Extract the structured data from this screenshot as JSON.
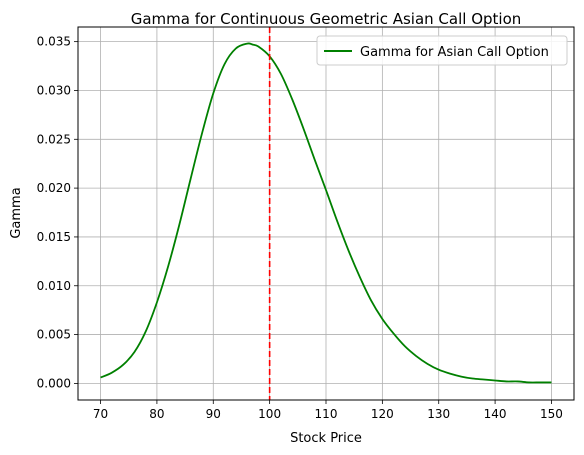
{
  "chart_data": {
    "type": "line",
    "title": "Gamma for Continuous Geometric Asian Call Option",
    "xlabel": "Stock Price",
    "ylabel": "Gamma",
    "xlim": [
      66,
      154
    ],
    "ylim": [
      -0.0017,
      0.0365
    ],
    "xticks": [
      70,
      80,
      90,
      100,
      110,
      120,
      130,
      140,
      150
    ],
    "yticks": [
      0.0,
      0.005,
      0.01,
      0.015,
      0.02,
      0.025,
      0.03,
      0.035
    ],
    "ytick_labels": [
      "0.000",
      "0.005",
      "0.010",
      "0.015",
      "0.020",
      "0.025",
      "0.030",
      "0.035"
    ],
    "grid": true,
    "legend_placement": "top-right",
    "series": [
      {
        "name": "Gamma for Asian Call Option",
        "color": "#008000",
        "x": [
          70,
          72,
          74,
          76,
          78,
          80,
          82,
          84,
          86,
          88,
          90,
          92,
          94,
          96,
          97,
          98,
          100,
          102,
          104,
          106,
          108,
          110,
          112,
          114,
          116,
          118,
          120,
          122,
          124,
          126,
          128,
          130,
          132,
          134,
          136,
          138,
          140,
          142,
          144,
          146,
          148,
          150
        ],
        "y": [
          0.0006,
          0.0011,
          0.0019,
          0.0032,
          0.0053,
          0.0083,
          0.012,
          0.0163,
          0.021,
          0.0256,
          0.0297,
          0.0327,
          0.0343,
          0.0348,
          0.0347,
          0.0345,
          0.0335,
          0.0317,
          0.0291,
          0.0261,
          0.0229,
          0.0198,
          0.0166,
          0.0136,
          0.0109,
          0.0085,
          0.0066,
          0.0051,
          0.0038,
          0.0028,
          0.002,
          0.0014,
          0.001,
          0.0007,
          0.0005,
          0.0004,
          0.0003,
          0.0002,
          0.0002,
          0.0001,
          0.0001,
          0.0001
        ]
      }
    ],
    "vline": {
      "x": 100,
      "color": "#ff0000",
      "style": "dashed"
    }
  }
}
